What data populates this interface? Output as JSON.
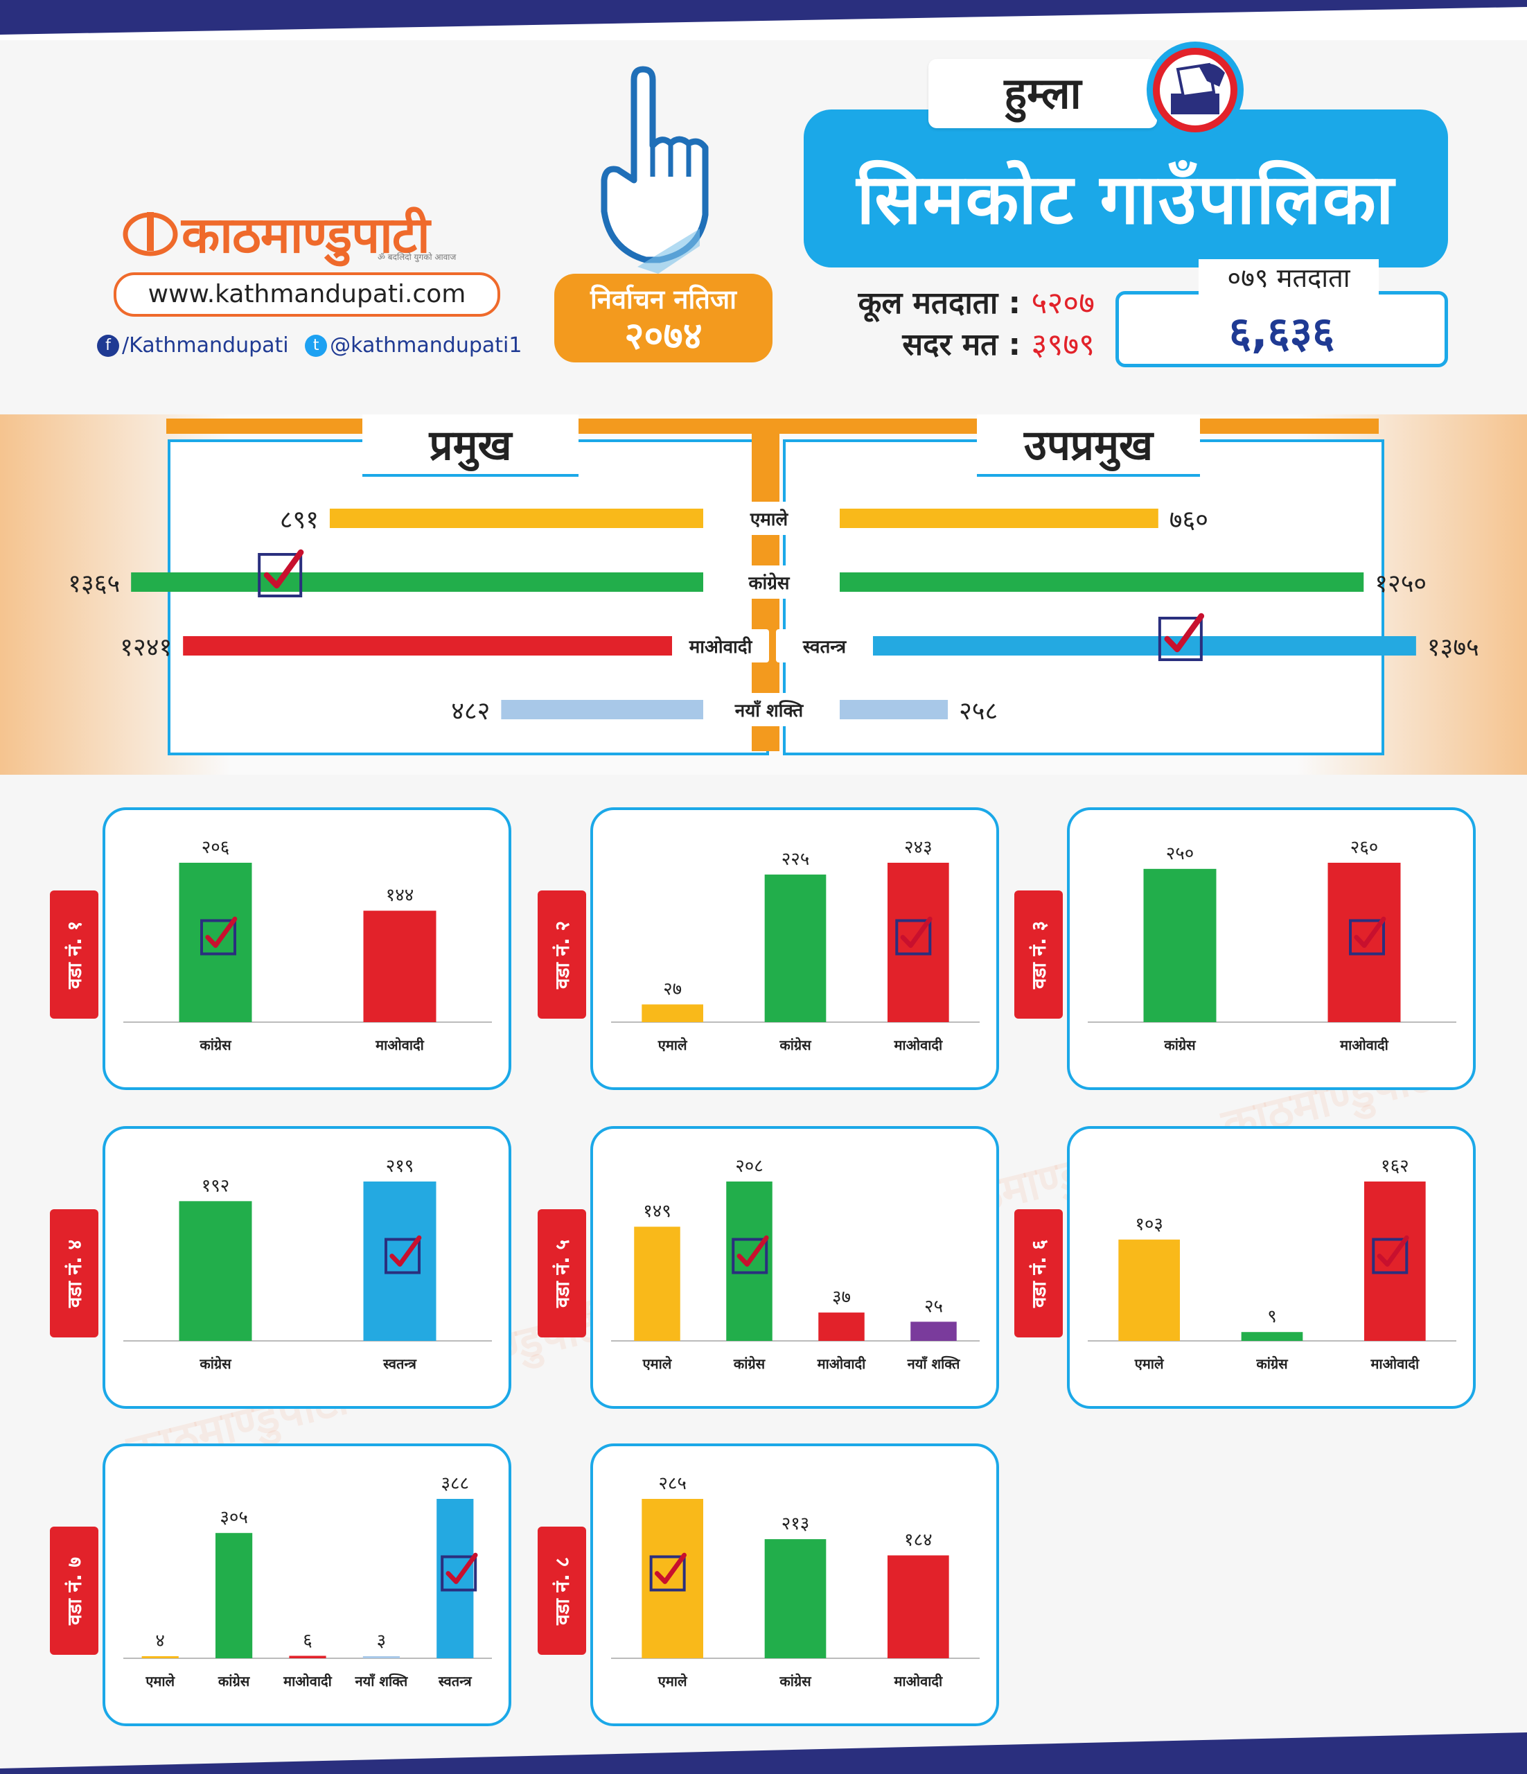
{
  "brand": {
    "name": "काठमाण्डुपाटी",
    "tagline": "ॐ बदलिदो युगको आवाज",
    "url": "www.kathmandupati.com",
    "facebook": "/Kathmandupati",
    "twitter": "@kathmandupati1",
    "fb_icon": "f",
    "tw_icon": "t"
  },
  "badge": {
    "line1": "निर्वाचन नतिजा",
    "line2": "२०७४"
  },
  "header": {
    "district": "हुम्ला",
    "municipality": "सिमकोट गाउँपालिका",
    "total_voters_label": "कूल मतदाता :",
    "total_voters": "५२०७",
    "valid_votes_label": "सदर मत :",
    "valid_votes": "३९७९",
    "voters079_label": "०७९ मतदाता",
    "voters079": "६,६३६"
  },
  "colors": {
    "uml": "#f9b91a",
    "congress": "#22ae4b",
    "maoist": "#e2222a",
    "independent": "#24a9e1",
    "nayashakti": "#a8c8e8",
    "nayashakti_dark": "#7a3b9c",
    "accent": "#1ba8e8",
    "orange": "#f39a1e"
  },
  "mayor": {
    "title": "प्रमुख",
    "rows": [
      {
        "party": "एमाले",
        "value": 891,
        "label": "८९१",
        "color": "uml",
        "winner": false
      },
      {
        "party": "कांग्रेस",
        "value": 1365,
        "label": "१३६५",
        "color": "congress",
        "winner": true
      },
      {
        "party": "माओवादी",
        "value": 1241,
        "label": "१२४१",
        "color": "maoist",
        "winner": false
      },
      {
        "party": "नयाँ शक्ति",
        "value": 482,
        "label": "४८२",
        "color": "nayashakti",
        "winner": false
      }
    ]
  },
  "deputy": {
    "title": "उपप्रमुख",
    "rows": [
      {
        "party": "एमाले",
        "value": 760,
        "label": "७६०",
        "color": "uml",
        "winner": false
      },
      {
        "party": "कांग्रेस",
        "value": 1250,
        "label": "१२५०",
        "color": "congress",
        "winner": false
      },
      {
        "party": "स्वतन्त्र",
        "value": 1375,
        "label": "१३७५",
        "color": "independent",
        "winner": true
      },
      {
        "party": "नयाँ शक्ति",
        "value": 258,
        "label": "२५८",
        "color": "nayashakti",
        "winner": false
      }
    ]
  },
  "chart_data": [
    {
      "type": "bar",
      "ward": "वडा नं. १",
      "categories": [
        "कांग्रेस",
        "माओवादी"
      ],
      "values": [
        206,
        144
      ],
      "labels": [
        "२०६",
        "१४४"
      ],
      "colors": [
        "congress",
        "maoist"
      ],
      "winner": 0
    },
    {
      "type": "bar",
      "ward": "वडा नं. २",
      "categories": [
        "एमाले",
        "कांग्रेस",
        "माओवादी"
      ],
      "values": [
        27,
        225,
        243
      ],
      "labels": [
        "२७",
        "२२५",
        "२४३"
      ],
      "colors": [
        "uml",
        "congress",
        "maoist"
      ],
      "winner": 2
    },
    {
      "type": "bar",
      "ward": "वडा नं. ३",
      "categories": [
        "कांग्रेस",
        "माओवादी"
      ],
      "values": [
        250,
        260
      ],
      "labels": [
        "२५०",
        "२६०"
      ],
      "colors": [
        "congress",
        "maoist"
      ],
      "winner": 1
    },
    {
      "type": "bar",
      "ward": "वडा नं. ४",
      "categories": [
        "कांग्रेस",
        "स्वतन्त्र"
      ],
      "values": [
        192,
        219
      ],
      "labels": [
        "१९२",
        "२१९"
      ],
      "colors": [
        "congress",
        "independent"
      ],
      "winner": 1
    },
    {
      "type": "bar",
      "ward": "वडा नं. ५",
      "categories": [
        "एमाले",
        "कांग्रेस",
        "माओवादी",
        "नयाँ शक्ति"
      ],
      "values": [
        149,
        208,
        37,
        25
      ],
      "labels": [
        "१४९",
        "२०८",
        "३७",
        "२५"
      ],
      "colors": [
        "uml",
        "congress",
        "maoist",
        "nayashakti_dark"
      ],
      "winner": 1
    },
    {
      "type": "bar",
      "ward": "वडा नं. ६",
      "categories": [
        "एमाले",
        "कांग्रेस",
        "माओवादी"
      ],
      "values": [
        103,
        9,
        162
      ],
      "labels": [
        "१०३",
        "९",
        "१६२"
      ],
      "colors": [
        "uml",
        "congress",
        "maoist"
      ],
      "winner": 2
    },
    {
      "type": "bar",
      "ward": "वडा नं. ७",
      "categories": [
        "एमाले",
        "कांग्रेस",
        "माओवादी",
        "नयाँ शक्ति",
        "स्वतन्त्र"
      ],
      "values": [
        4,
        305,
        6,
        3,
        388
      ],
      "labels": [
        "४",
        "३०५",
        "६",
        "३",
        "३८८"
      ],
      "colors": [
        "uml",
        "congress",
        "maoist",
        "nayashakti",
        "independent"
      ],
      "winner": 4
    },
    {
      "type": "bar",
      "ward": "वडा नं. ८",
      "categories": [
        "एमाले",
        "कांग्रेस",
        "माओवादी"
      ],
      "values": [
        285,
        213,
        184
      ],
      "labels": [
        "२८५",
        "२१३",
        "१८४"
      ],
      "colors": [
        "uml",
        "congress",
        "maoist"
      ],
      "winner": 0
    }
  ]
}
